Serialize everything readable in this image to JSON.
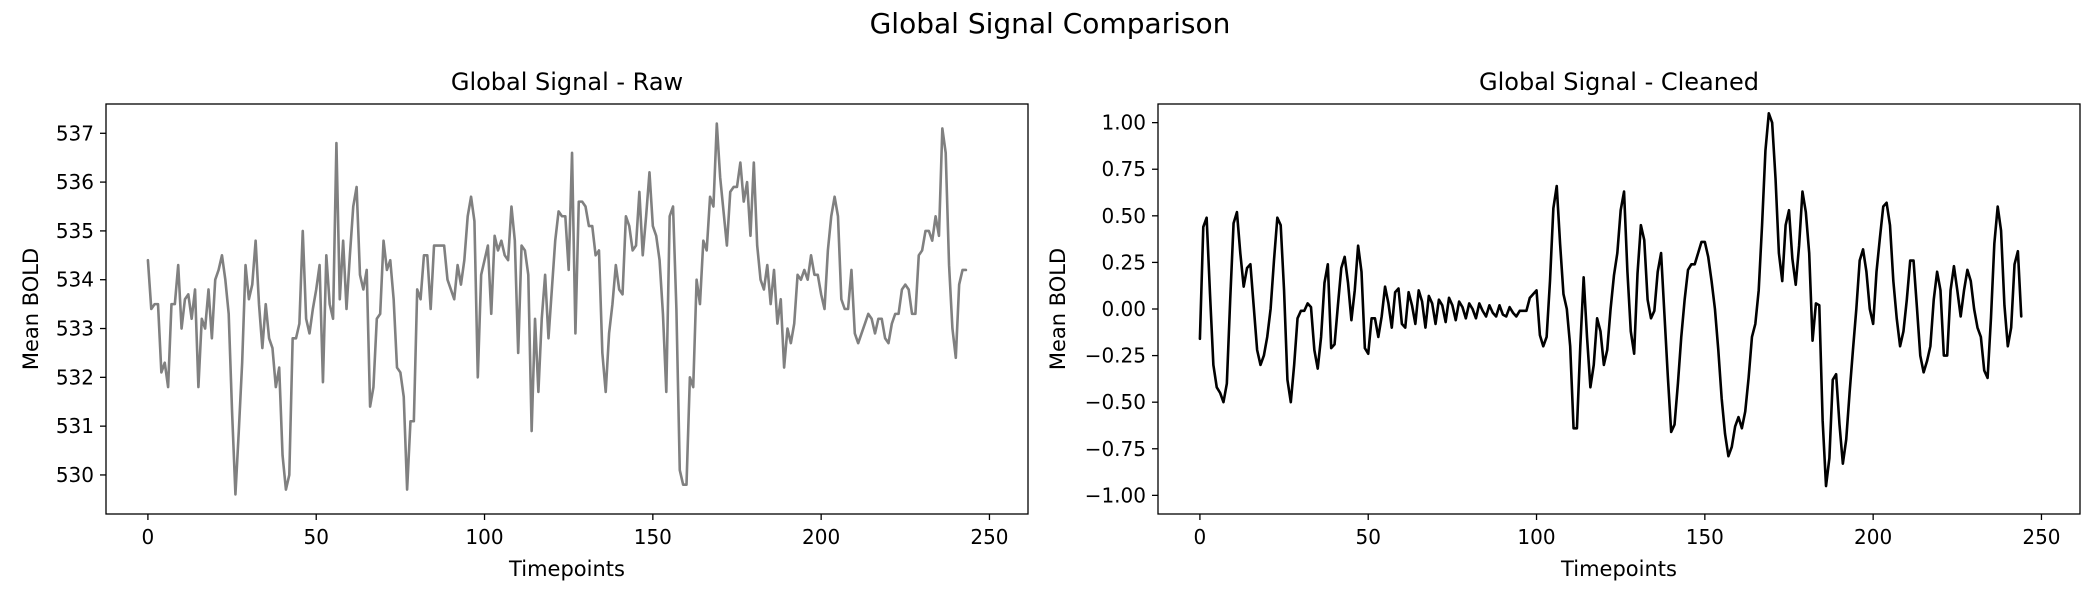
{
  "figure": {
    "title": "Global Signal Comparison"
  },
  "chart_data": [
    {
      "type": "line",
      "title": "Global Signal - Raw",
      "xlabel": "Timepoints",
      "ylabel": "Mean BOLD",
      "xlim": [
        -12.45,
        261.45
      ],
      "ylim": [
        529.2,
        537.6
      ],
      "xticks": [
        0,
        50,
        100,
        150,
        200,
        250
      ],
      "yticks": [
        530,
        531,
        532,
        533,
        534,
        535,
        536,
        537
      ],
      "ytick_labels": [
        "530",
        "531",
        "532",
        "533",
        "534",
        "535",
        "536",
        "537"
      ],
      "color": "#808080",
      "series": [
        {
          "x_start": 0,
          "x_step": 1,
          "values": [
            534.4,
            533.4,
            533.5,
            533.5,
            532.1,
            532.3,
            531.8,
            533.5,
            533.5,
            534.3,
            533.0,
            533.6,
            533.7,
            533.2,
            533.8,
            531.8,
            533.2,
            533.0,
            533.8,
            532.8,
            534.0,
            534.2,
            534.5,
            534.0,
            533.3,
            531.3,
            529.6,
            530.9,
            532.3,
            534.3,
            533.6,
            533.9,
            534.8,
            533.5,
            532.6,
            533.5,
            532.8,
            532.6,
            531.8,
            532.2,
            530.4,
            529.7,
            530.0,
            532.8,
            532.8,
            533.1,
            535.0,
            533.2,
            532.9,
            533.4,
            533.8,
            534.3,
            531.9,
            534.5,
            533.5,
            533.2,
            536.8,
            533.6,
            534.8,
            533.4,
            534.5,
            535.5,
            535.9,
            534.1,
            533.8,
            534.2,
            531.4,
            531.8,
            533.2,
            533.3,
            534.8,
            534.2,
            534.4,
            533.6,
            532.2,
            532.1,
            531.6,
            529.7,
            531.1,
            531.1,
            533.8,
            533.6,
            534.5,
            534.5,
            533.4,
            534.7,
            534.7,
            534.7,
            534.7,
            534.0,
            533.8,
            533.6,
            534.3,
            533.9,
            534.4,
            535.3,
            535.7,
            535.2,
            532.0,
            534.1,
            534.4,
            534.7,
            533.3,
            534.9,
            534.6,
            534.8,
            534.5,
            534.4,
            535.5,
            534.8,
            532.5,
            534.7,
            534.6,
            534.1,
            530.9,
            533.2,
            531.7,
            533.2,
            534.1,
            532.8,
            533.8,
            534.8,
            535.4,
            535.3,
            535.3,
            534.2,
            536.6,
            532.9,
            535.6,
            535.6,
            535.5,
            535.1,
            535.1,
            534.5,
            534.6,
            532.5,
            531.7,
            532.9,
            533.5,
            534.3,
            533.8,
            533.7,
            535.3,
            535.1,
            534.6,
            534.7,
            535.8,
            534.5,
            535.3,
            536.2,
            535.1,
            534.9,
            534.4,
            533.3,
            531.7,
            535.3,
            535.5,
            533.4,
            530.1,
            529.8,
            529.8,
            532.0,
            531.8,
            534.0,
            533.5,
            534.8,
            534.6,
            535.7,
            535.5,
            537.2,
            536.1,
            535.4,
            534.7,
            535.8,
            535.9,
            535.9,
            536.4,
            535.6,
            536.0,
            534.9,
            536.4,
            534.7,
            534.0,
            533.8,
            534.3,
            533.5,
            534.2,
            533.1,
            533.6,
            532.2,
            533.0,
            532.7,
            533.1,
            534.1,
            534.0,
            534.2,
            534.0,
            534.5,
            534.1,
            534.1,
            533.7,
            533.4,
            534.6,
            535.3,
            535.7,
            535.3,
            533.6,
            533.4,
            533.4,
            534.2,
            532.9,
            532.7,
            532.9,
            533.1,
            533.3,
            533.2,
            532.9,
            533.2,
            533.2,
            532.8,
            532.7,
            533.1,
            533.3,
            533.3,
            533.8,
            533.9,
            533.8,
            533.3,
            533.3,
            534.5,
            534.6,
            535.0,
            535.0,
            534.8,
            535.3,
            534.9,
            537.1,
            536.6,
            534.3,
            533.0,
            532.4,
            533.9,
            534.2,
            534.2
          ]
        }
      ]
    },
    {
      "type": "line",
      "title": "Global Signal - Cleaned",
      "xlabel": "Timepoints",
      "ylabel": "Mean BOLD",
      "xlim": [
        -12.45,
        261.45
      ],
      "ylim": [
        -1.1,
        1.1
      ],
      "xticks": [
        0,
        50,
        100,
        150,
        200,
        250
      ],
      "yticks": [
        -1.0,
        -0.75,
        -0.5,
        -0.25,
        0.0,
        0.25,
        0.5,
        0.75,
        1.0
      ],
      "ytick_labels": [
        "−1.00",
        "−0.75",
        "−0.50",
        "−0.25",
        "0.00",
        "0.25",
        "0.50",
        "0.75",
        "1.00"
      ],
      "color": "#000000",
      "series": [
        {
          "x_start": 0,
          "x_step": 1,
          "values": [
            -0.16,
            0.44,
            0.49,
            0.08,
            -0.3,
            -0.42,
            -0.45,
            -0.5,
            -0.4,
            0.05,
            0.46,
            0.52,
            0.3,
            0.12,
            0.22,
            0.24,
            0.01,
            -0.22,
            -0.3,
            -0.25,
            -0.15,
            0.0,
            0.26,
            0.49,
            0.45,
            0.1,
            -0.38,
            -0.5,
            -0.3,
            -0.05,
            -0.01,
            -0.01,
            0.03,
            0.01,
            -0.22,
            -0.32,
            -0.15,
            0.14,
            0.24,
            -0.21,
            -0.19,
            0.02,
            0.22,
            0.28,
            0.14,
            -0.06,
            0.1,
            0.34,
            0.2,
            -0.21,
            -0.24,
            -0.05,
            -0.05,
            -0.15,
            -0.04,
            0.12,
            0.03,
            -0.1,
            0.09,
            0.11,
            -0.08,
            -0.1,
            0.09,
            0.02,
            -0.08,
            0.1,
            0.04,
            -0.1,
            0.07,
            0.03,
            -0.08,
            0.05,
            0.02,
            -0.07,
            0.06,
            0.02,
            -0.06,
            0.04,
            0.01,
            -0.05,
            0.03,
            0.0,
            -0.05,
            0.03,
            -0.01,
            -0.04,
            0.02,
            -0.02,
            -0.04,
            0.02,
            -0.03,
            -0.04,
            0.01,
            -0.02,
            -0.04,
            -0.01,
            -0.01,
            -0.01,
            0.06,
            0.08,
            0.1,
            -0.14,
            -0.2,
            -0.15,
            0.15,
            0.54,
            0.66,
            0.35,
            0.08,
            0.0,
            -0.2,
            -0.64,
            -0.64,
            -0.2,
            0.17,
            -0.15,
            -0.42,
            -0.3,
            -0.05,
            -0.12,
            -0.3,
            -0.22,
            0.0,
            0.18,
            0.3,
            0.53,
            0.63,
            0.2,
            -0.12,
            -0.24,
            0.19,
            0.45,
            0.37,
            0.05,
            -0.05,
            -0.01,
            0.2,
            0.3,
            -0.03,
            -0.36,
            -0.66,
            -0.62,
            -0.4,
            -0.15,
            0.05,
            0.21,
            0.24,
            0.24,
            0.3,
            0.36,
            0.36,
            0.28,
            0.15,
            0.0,
            -0.22,
            -0.48,
            -0.67,
            -0.79,
            -0.74,
            -0.63,
            -0.58,
            -0.64,
            -0.55,
            -0.37,
            -0.15,
            -0.08,
            0.1,
            0.45,
            0.85,
            1.05,
            1.0,
            0.7,
            0.3,
            0.15,
            0.45,
            0.53,
            0.27,
            0.13,
            0.34,
            0.63,
            0.52,
            0.3,
            -0.17,
            0.03,
            0.02,
            -0.6,
            -0.95,
            -0.8,
            -0.38,
            -0.35,
            -0.62,
            -0.83,
            -0.7,
            -0.45,
            -0.22,
            0.0,
            0.26,
            0.32,
            0.2,
            0.0,
            -0.08,
            0.2,
            0.38,
            0.55,
            0.57,
            0.45,
            0.15,
            -0.05,
            -0.2,
            -0.12,
            0.05,
            0.26,
            0.26,
            0.01,
            -0.25,
            -0.34,
            -0.28,
            -0.2,
            0.05,
            0.2,
            0.1,
            -0.25,
            -0.25,
            0.1,
            0.23,
            0.1,
            -0.04,
            0.1,
            0.21,
            0.15,
            0.0,
            -0.1,
            -0.15,
            -0.33,
            -0.37,
            -0.05,
            0.35,
            0.55,
            0.42,
            0.02,
            -0.2,
            -0.1,
            0.24,
            0.31,
            -0.04
          ]
        }
      ]
    }
  ]
}
